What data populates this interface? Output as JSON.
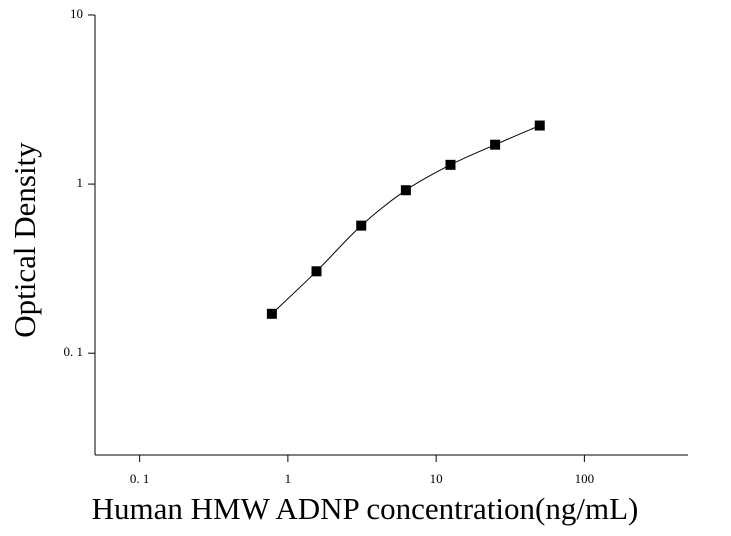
{
  "chart_data": {
    "type": "scatter",
    "x_label": "Human HMW ADNP concentration(ng/mL)",
    "y_label": "Optical Density",
    "x": [
      0.78,
      1.56,
      3.125,
      6.25,
      12.5,
      25,
      50
    ],
    "series": [
      {
        "color": "#000000",
        "values": [
          0.171,
          0.305,
          0.568,
          0.92,
          1.3,
          1.71,
          2.22
        ]
      }
    ],
    "xlim": [
      0.05,
      500
    ],
    "ylim": [
      0.025,
      10
    ],
    "xticks": [
      {
        "value": 0.1,
        "label": "0. 1"
      },
      1,
      10,
      100
    ],
    "yticks": [
      {
        "value": 0.1,
        "label": "0. 1"
      },
      1,
      10
    ],
    "x_log": true,
    "y_log": true,
    "fit_line": true
  }
}
